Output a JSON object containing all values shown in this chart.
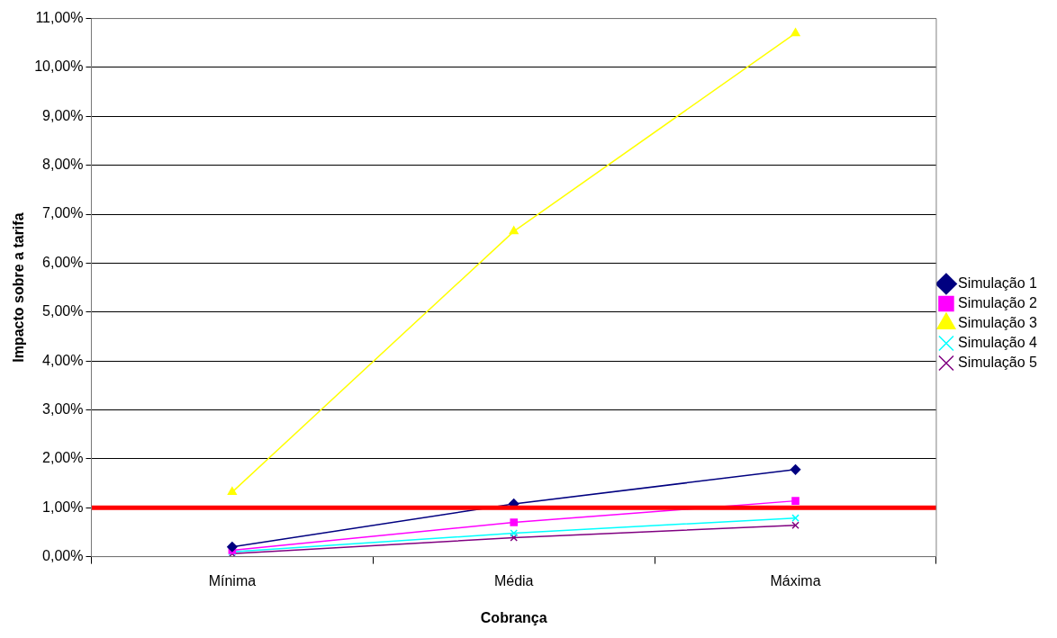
{
  "chart_data": {
    "type": "line",
    "xlabel": "Cobrança",
    "ylabel": "Impacto sobre a tarifa",
    "categories": [
      "Mínima",
      "Média",
      "Máxima"
    ],
    "series": [
      {
        "name": "Simulação 1",
        "color": "#000080",
        "marker": "diamond",
        "values": [
          0.2,
          1.08,
          1.78
        ]
      },
      {
        "name": "Simulação 2",
        "color": "#ff00ff",
        "marker": "square",
        "values": [
          0.13,
          0.7,
          1.14
        ]
      },
      {
        "name": "Simulação 3",
        "color": "#ffff00",
        "marker": "triangle",
        "values": [
          1.32,
          6.65,
          10.7
        ]
      },
      {
        "name": "Simulação 4",
        "color": "#00ffff",
        "marker": "cross",
        "values": [
          0.1,
          0.48,
          0.79
        ]
      },
      {
        "name": "Simulação 5",
        "color": "#800080",
        "marker": "cross",
        "values": [
          0.06,
          0.39,
          0.64
        ]
      }
    ],
    "ylim": [
      0,
      11
    ],
    "yticks": [
      {
        "value": 0,
        "label": "0,00%"
      },
      {
        "value": 1,
        "label": "1,00%"
      },
      {
        "value": 2,
        "label": "2,00%"
      },
      {
        "value": 3,
        "label": "3,00%"
      },
      {
        "value": 4,
        "label": "4,00%"
      },
      {
        "value": 5,
        "label": "5,00%"
      },
      {
        "value": 6,
        "label": "6,00%"
      },
      {
        "value": 7,
        "label": "7,00%"
      },
      {
        "value": 8,
        "label": "8,00%"
      },
      {
        "value": 9,
        "label": "9,00%"
      },
      {
        "value": 10,
        "label": "10,00%"
      },
      {
        "value": 11,
        "label": "11,00%"
      }
    ],
    "ref_lines": [
      {
        "axis": "y",
        "value": 1,
        "color": "#ff0000"
      }
    ],
    "grid": "y",
    "legend": "right",
    "line_style": "solid"
  }
}
